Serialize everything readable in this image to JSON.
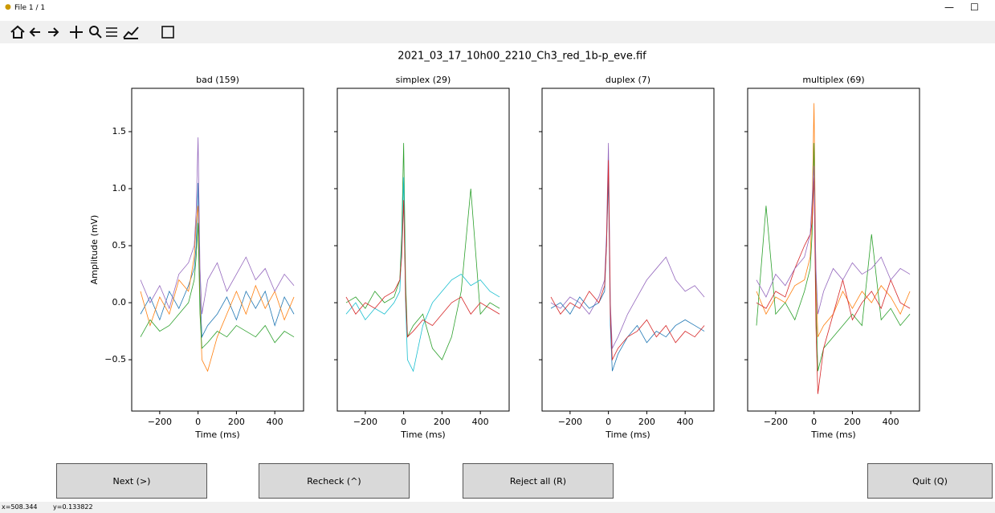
{
  "window": {
    "title": "File 1 / 1",
    "minimize": "—",
    "maximize": "☐"
  },
  "figure_title": "2021_03_17_10h00_2210_Ch3_red_1b-p_eve.fif",
  "chart_data": [
    {
      "type": "line",
      "title": "bad (159)",
      "xlabel": "Time (ms)",
      "ylabel": "Amplitude (mV)",
      "xlim": [
        -346,
        550
      ],
      "ylim": [
        -0.95,
        1.88
      ],
      "xticks": [
        {
          "value": -200,
          "label": "−200"
        },
        0,
        200,
        400
      ],
      "yticks": [
        {
          "value": -0.5,
          "label": "−0.5"
        },
        {
          "value": 0,
          "label": "0.0"
        },
        0.5,
        {
          "value": 1,
          "label": "1.0"
        },
        1.5
      ],
      "x": [
        -300,
        -250,
        -200,
        -150,
        -100,
        -50,
        -20,
        -10,
        0,
        10,
        20,
        50,
        100,
        150,
        200,
        250,
        300,
        350,
        400,
        450,
        500
      ],
      "series": [
        {
          "color": "#1f77b4",
          "values": [
            -0.1,
            0.05,
            -0.15,
            0.1,
            -0.05,
            0.15,
            0.3,
            0.5,
            1.05,
            0.1,
            -0.3,
            -0.2,
            -0.1,
            0.05,
            -0.15,
            0.1,
            -0.05,
            0.1,
            -0.2,
            0.05,
            -0.1
          ]
        },
        {
          "color": "#ff7f0e",
          "values": [
            0.1,
            -0.2,
            0.05,
            -0.1,
            0.2,
            0.1,
            0.4,
            0.7,
            0.85,
            0,
            -0.5,
            -0.6,
            -0.3,
            -0.1,
            0.1,
            -0.1,
            0.15,
            -0.05,
            0.1,
            -0.15,
            0.05
          ]
        },
        {
          "color": "#9467bd",
          "values": [
            0.2,
            0,
            0.15,
            -0.05,
            0.25,
            0.35,
            0.5,
            0.8,
            1.45,
            0.3,
            -0.1,
            0.2,
            0.35,
            0.1,
            0.25,
            0.4,
            0.2,
            0.3,
            0.1,
            0.25,
            0.15
          ]
        },
        {
          "color": "#2ca02c",
          "values": [
            -0.3,
            -0.15,
            -0.25,
            -0.2,
            -0.1,
            0,
            0.2,
            0.4,
            0.7,
            -0.1,
            -0.4,
            -0.35,
            -0.25,
            -0.3,
            -0.2,
            -0.25,
            -0.3,
            -0.2,
            -0.35,
            -0.25,
            -0.3
          ]
        }
      ]
    },
    {
      "type": "line",
      "title": "simplex (29)",
      "xlabel": "Time (ms)",
      "xlim": [
        -346,
        550
      ],
      "ylim": [
        -0.95,
        1.88
      ],
      "xticks": [
        {
          "value": -200,
          "label": "−200"
        },
        0,
        200,
        400
      ],
      "yticks": [
        -0.5,
        0,
        0.5,
        1,
        1.5
      ],
      "x": [
        -300,
        -250,
        -200,
        -150,
        -100,
        -50,
        -20,
        -10,
        0,
        10,
        20,
        50,
        100,
        150,
        200,
        250,
        300,
        350,
        400,
        450,
        500
      ],
      "series": [
        {
          "color": "#2ca02c",
          "values": [
            0,
            0.05,
            -0.05,
            0.1,
            0,
            0.05,
            0.2,
            0.6,
            1.4,
            0.2,
            -0.3,
            -0.2,
            -0.1,
            -0.4,
            -0.5,
            -0.3,
            0.1,
            1.0,
            -0.1,
            0,
            -0.05
          ]
        },
        {
          "color": "#17becf",
          "values": [
            -0.1,
            0,
            -0.15,
            -0.05,
            -0.1,
            0,
            0.1,
            0.5,
            1.1,
            0,
            -0.5,
            -0.6,
            -0.2,
            0,
            0.1,
            0.2,
            0.25,
            0.15,
            0.2,
            0.1,
            0.05
          ]
        },
        {
          "color": "#d62728",
          "values": [
            0.05,
            -0.1,
            0,
            -0.05,
            0.05,
            0.1,
            0.2,
            0.4,
            0.9,
            0.05,
            -0.3,
            -0.25,
            -0.15,
            -0.2,
            -0.1,
            0,
            0.05,
            -0.1,
            0,
            -0.05,
            -0.1
          ]
        }
      ]
    },
    {
      "type": "line",
      "title": "duplex (7)",
      "xlabel": "Time (ms)",
      "xlim": [
        -346,
        550
      ],
      "ylim": [
        -0.95,
        1.88
      ],
      "xticks": [
        {
          "value": -200,
          "label": "−200"
        },
        0,
        200,
        400
      ],
      "yticks": [
        -0.5,
        0,
        0.5,
        1,
        1.5
      ],
      "x": [
        -300,
        -250,
        -200,
        -150,
        -100,
        -50,
        -20,
        -10,
        0,
        10,
        20,
        50,
        100,
        150,
        200,
        250,
        300,
        350,
        400,
        450,
        500
      ],
      "series": [
        {
          "color": "#9467bd",
          "values": [
            0,
            -0.05,
            0.05,
            0,
            -0.1,
            0.05,
            0.2,
            0.6,
            1.4,
            0,
            -0.4,
            -0.3,
            -0.1,
            0.05,
            0.2,
            0.3,
            0.4,
            0.2,
            0.1,
            0.15,
            0.05
          ]
        },
        {
          "color": "#1f77b4",
          "values": [
            -0.05,
            0,
            -0.1,
            0.05,
            -0.05,
            0,
            0.1,
            0.5,
            1.1,
            -0.2,
            -0.6,
            -0.45,
            -0.3,
            -0.2,
            -0.35,
            -0.25,
            -0.3,
            -0.2,
            -0.15,
            -0.2,
            -0.25
          ]
        },
        {
          "color": "#d62728",
          "values": [
            0.05,
            -0.1,
            0,
            -0.05,
            0.1,
            0,
            0.15,
            0.5,
            1.25,
            -0.1,
            -0.5,
            -0.4,
            -0.3,
            -0.25,
            -0.15,
            -0.3,
            -0.2,
            -0.35,
            -0.25,
            -0.3,
            -0.2
          ]
        }
      ]
    },
    {
      "type": "line",
      "title": "multiplex (69)",
      "xlabel": "Time (ms)",
      "xlim": [
        -346,
        550
      ],
      "ylim": [
        -0.95,
        1.88
      ],
      "xticks": [
        {
          "value": -200,
          "label": "−200"
        },
        0,
        200,
        400
      ],
      "yticks": [
        -0.5,
        0,
        0.5,
        1,
        1.5
      ],
      "x": [
        -300,
        -250,
        -200,
        -150,
        -100,
        -50,
        -20,
        -10,
        0,
        10,
        20,
        50,
        100,
        150,
        200,
        250,
        300,
        350,
        400,
        450,
        500
      ],
      "series": [
        {
          "color": "#ff7f0e",
          "values": [
            0.1,
            -0.1,
            0.05,
            0,
            0.15,
            0.2,
            0.4,
            0.8,
            1.75,
            0.2,
            -0.3,
            -0.2,
            -0.1,
            0.1,
            -0.05,
            0.1,
            0,
            0.15,
            0.05,
            -0.1,
            0.1
          ]
        },
        {
          "color": "#2ca02c",
          "values": [
            -0.2,
            0.85,
            -0.1,
            0,
            -0.15,
            0.1,
            0.3,
            0.6,
            1.4,
            0,
            -0.6,
            -0.4,
            -0.3,
            -0.2,
            -0.1,
            -0.2,
            0.6,
            -0.15,
            -0.05,
            -0.2,
            -0.1
          ]
        },
        {
          "color": "#d62728",
          "values": [
            0,
            -0.05,
            0.1,
            0.05,
            0.3,
            0.5,
            0.6,
            0.7,
            1.1,
            -0.2,
            -0.8,
            -0.4,
            -0.1,
            0.2,
            -0.15,
            0,
            0.1,
            -0.05,
            0.2,
            0,
            -0.05
          ]
        },
        {
          "color": "#9467bd",
          "values": [
            0.2,
            0.05,
            0.25,
            0.15,
            0.3,
            0.4,
            0.6,
            0.9,
            1.2,
            0.3,
            -0.1,
            0.1,
            0.3,
            0.2,
            0.35,
            0.25,
            0.3,
            0.4,
            0.2,
            0.3,
            0.25
          ]
        }
      ]
    }
  ],
  "buttons": [
    "Next (>)",
    "Recheck (^)",
    "Reject all (R)",
    "Quit (Q)"
  ],
  "status": {
    "x": "x=508.344",
    "y": "y=0.133822"
  }
}
